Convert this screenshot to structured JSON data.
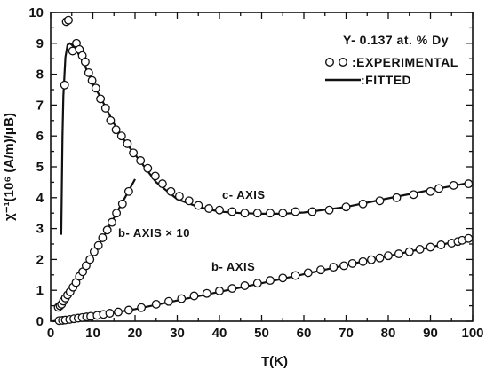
{
  "chart_data": {
    "type": "scatter",
    "xlabel": "T(K)",
    "ylabel": "χ⁻¹(10⁶ (A/m)/μB)",
    "xlim": [
      0,
      100
    ],
    "ylim": [
      0,
      10
    ],
    "xticks": [
      "0",
      "10",
      "20",
      "30",
      "40",
      "50",
      "60",
      "70",
      "80",
      "90",
      "100"
    ],
    "yticks": [
      "0",
      "1",
      "2",
      "3",
      "4",
      "5",
      "6",
      "7",
      "8",
      "9",
      "10"
    ],
    "grid": false,
    "legend": {
      "position": "top-right",
      "title": "Y- 0.137 at. % Dy",
      "experimental_label": ":EXPERIMENTAL",
      "fitted_label": ":FITTED"
    },
    "annotations": {
      "c_axis": "c- AXIS",
      "b_axis_x10": "b- AXIS × 10",
      "b_axis": "b- AXIS"
    },
    "series": [
      {
        "name": "c- AXIS",
        "experimental": {
          "x": [
            3.3,
            3.7,
            4.2,
            5.2,
            6.1,
            6.8,
            7.5,
            8.2,
            9.0,
            9.8,
            10.7,
            11.8,
            13.0,
            14.2,
            15.5,
            16.8,
            18.2,
            19.6,
            21.3,
            23.0,
            24.8,
            26.5,
            28.5,
            30.5,
            32.8,
            35.0,
            37.5,
            40.0,
            43.0,
            46.0,
            49.0,
            52.0,
            55.0,
            58.0,
            62.0,
            66.0,
            70.0,
            74.0,
            78.0,
            82.0,
            86.0,
            90.0,
            92.0,
            95.5,
            99.0
          ],
          "y": [
            7.65,
            9.7,
            9.75,
            8.75,
            9.0,
            8.8,
            8.6,
            8.4,
            8.05,
            7.8,
            7.55,
            7.2,
            6.9,
            6.5,
            6.2,
            6.0,
            5.75,
            5.45,
            5.2,
            4.95,
            4.7,
            4.45,
            4.2,
            4.05,
            3.9,
            3.75,
            3.65,
            3.6,
            3.55,
            3.5,
            3.5,
            3.5,
            3.5,
            3.55,
            3.55,
            3.6,
            3.7,
            3.8,
            3.9,
            4.0,
            4.1,
            4.2,
            4.3,
            4.4,
            4.45
          ]
        },
        "fitted": {
          "x": [
            2.5,
            2.8,
            3.0,
            3.5,
            4.0,
            4.5,
            5.0,
            6.0,
            7.0,
            8.0,
            10.0,
            12.0,
            15.0,
            18.0,
            20.0,
            25.0,
            30.0,
            35.0,
            40.0,
            45.0,
            50.0,
            55.0,
            60.0,
            70.0,
            80.0,
            90.0,
            100.0
          ],
          "y": [
            2.8,
            6.0,
            7.3,
            8.55,
            8.95,
            9.0,
            8.95,
            8.8,
            8.55,
            8.3,
            7.7,
            7.2,
            6.4,
            5.75,
            5.4,
            4.5,
            3.95,
            3.7,
            3.55,
            3.5,
            3.48,
            3.48,
            3.52,
            3.7,
            3.98,
            4.25,
            4.5
          ]
        }
      },
      {
        "name": "b- AXIS × 10",
        "experimental": {
          "x": [
            1.8,
            2.2,
            2.6,
            3.0,
            3.5,
            4.0,
            4.6,
            5.3,
            6.0,
            6.8,
            7.6,
            8.4,
            9.3,
            10.3,
            11.3,
            12.3,
            13.4,
            14.5,
            15.6,
            17.0,
            18.5
          ],
          "y": [
            0.45,
            0.5,
            0.55,
            0.65,
            0.75,
            0.85,
            0.95,
            1.1,
            1.25,
            1.45,
            1.6,
            1.8,
            2.0,
            2.25,
            2.45,
            2.7,
            2.95,
            3.2,
            3.5,
            3.8,
            4.2
          ]
        },
        "fitted": {
          "x": [
            1.5,
            3.0,
            5.0,
            7.0,
            9.0,
            11.0,
            13.0,
            15.0,
            17.0,
            19.0,
            20.0
          ],
          "y": [
            0.35,
            0.6,
            1.0,
            1.45,
            1.92,
            2.4,
            2.85,
            3.35,
            3.85,
            4.35,
            4.6
          ]
        }
      },
      {
        "name": "b- AXIS",
        "experimental": {
          "x": [
            2.0,
            2.8,
            3.5,
            4.5,
            5.5,
            6.5,
            7.5,
            8.5,
            9.5,
            11.0,
            12.5,
            14.0,
            16.0,
            18.5,
            21.5,
            25.0,
            28.0,
            31.0,
            34.0,
            37.0,
            40.0,
            43.0,
            46.0,
            49.0,
            52.0,
            55.0,
            58.0,
            61.0,
            64.0,
            67.0,
            69.5,
            71.5,
            74.0,
            76.0,
            78.0,
            80.0,
            82.5,
            85.0,
            87.5,
            90.0,
            92.5,
            95.0,
            96.5,
            97.5,
            99.0
          ],
          "y": [
            0.02,
            0.03,
            0.04,
            0.06,
            0.08,
            0.1,
            0.12,
            0.14,
            0.16,
            0.19,
            0.22,
            0.26,
            0.3,
            0.36,
            0.44,
            0.55,
            0.64,
            0.73,
            0.82,
            0.9,
            0.98,
            1.06,
            1.15,
            1.23,
            1.32,
            1.4,
            1.48,
            1.57,
            1.66,
            1.75,
            1.8,
            1.87,
            1.93,
            1.99,
            2.05,
            2.12,
            2.18,
            2.25,
            2.33,
            2.4,
            2.47,
            2.53,
            2.58,
            2.62,
            2.68
          ]
        },
        "fitted": {
          "x": [
            0.5,
            5.0,
            10.0,
            20.0,
            30.0,
            40.0,
            50.0,
            60.0,
            70.0,
            80.0,
            90.0,
            100.0
          ],
          "y": [
            0.0,
            0.07,
            0.16,
            0.39,
            0.67,
            0.95,
            1.23,
            1.52,
            1.82,
            2.11,
            2.4,
            2.7
          ]
        }
      }
    ]
  }
}
